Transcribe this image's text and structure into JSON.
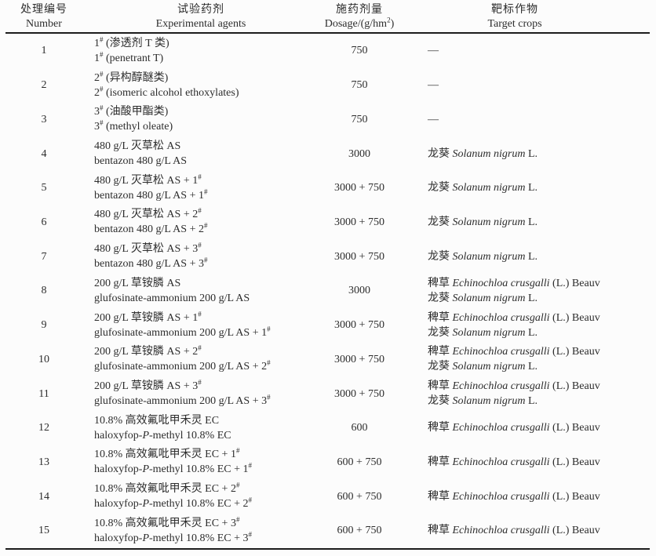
{
  "page": {
    "background": "#fcfcfc",
    "text_color": "#2d2d2d",
    "rule_color": "#1c1c1c"
  },
  "table": {
    "header": {
      "number_cn": "处理编号",
      "number_en": "Number",
      "agents_cn": "试验药剂",
      "agents_en": "Experimental agents",
      "dosage_cn": "施药剂量",
      "dosage_en_segments": [
        {
          "text": "Dosage/(g/hm"
        },
        {
          "text": "2",
          "sup": true
        },
        {
          "text": ")"
        }
      ],
      "target_cn": "靶标作物",
      "target_en": "Target crops"
    },
    "rows": [
      {
        "number": "1",
        "agent": [
          [
            {
              "text": "1"
            },
            {
              "text": "#",
              "sup": true
            },
            {
              "text": " (渗透剂 T 类)"
            }
          ],
          [
            {
              "text": "1"
            },
            {
              "text": "#",
              "sup": true
            },
            {
              "text": " (penetrant T)"
            }
          ]
        ],
        "dosage": "750",
        "targets": [
          [
            {
              "text": "—"
            }
          ]
        ]
      },
      {
        "number": "2",
        "agent": [
          [
            {
              "text": "2"
            },
            {
              "text": "#",
              "sup": true
            },
            {
              "text": " (异构醇醚类)"
            }
          ],
          [
            {
              "text": "2"
            },
            {
              "text": "#",
              "sup": true
            },
            {
              "text": " (isomeric alcohol ethoxylates)"
            }
          ]
        ],
        "dosage": "750",
        "targets": [
          [
            {
              "text": "—"
            }
          ]
        ]
      },
      {
        "number": "3",
        "agent": [
          [
            {
              "text": "3"
            },
            {
              "text": "#",
              "sup": true
            },
            {
              "text": " (油酸甲酯类)"
            }
          ],
          [
            {
              "text": "3"
            },
            {
              "text": "#",
              "sup": true
            },
            {
              "text": " (methyl oleate)"
            }
          ]
        ],
        "dosage": "750",
        "targets": [
          [
            {
              "text": "—"
            }
          ]
        ]
      },
      {
        "number": "4",
        "agent": [
          [
            {
              "text": "480 g/L 灭草松 AS"
            }
          ],
          [
            {
              "text": "bentazon 480 g/L AS"
            }
          ]
        ],
        "dosage": "3000",
        "targets": [
          [
            {
              "text": "龙葵 "
            },
            {
              "text": "Solanum nigrum",
              "italic": true
            },
            {
              "text": " L."
            }
          ]
        ]
      },
      {
        "number": "5",
        "agent": [
          [
            {
              "text": "480 g/L 灭草松 AS + 1"
            },
            {
              "text": "#",
              "sup": true
            }
          ],
          [
            {
              "text": "bentazon 480 g/L AS + 1"
            },
            {
              "text": "#",
              "sup": true
            }
          ]
        ],
        "dosage": "3000 + 750",
        "targets": [
          [
            {
              "text": "龙葵 "
            },
            {
              "text": "Solanum nigrum",
              "italic": true
            },
            {
              "text": " L."
            }
          ]
        ]
      },
      {
        "number": "6",
        "agent": [
          [
            {
              "text": "480 g/L 灭草松 AS + 2"
            },
            {
              "text": "#",
              "sup": true
            }
          ],
          [
            {
              "text": "bentazon 480 g/L AS + 2"
            },
            {
              "text": "#",
              "sup": true
            }
          ]
        ],
        "dosage": "3000 + 750",
        "targets": [
          [
            {
              "text": "龙葵 "
            },
            {
              "text": "Solanum nigrum",
              "italic": true
            },
            {
              "text": " L."
            }
          ]
        ]
      },
      {
        "number": "7",
        "agent": [
          [
            {
              "text": "480 g/L 灭草松 AS + 3"
            },
            {
              "text": "#",
              "sup": true
            }
          ],
          [
            {
              "text": "bentazon 480 g/L AS + 3"
            },
            {
              "text": "#",
              "sup": true
            }
          ]
        ],
        "dosage": "3000 + 750",
        "targets": [
          [
            {
              "text": "龙葵 "
            },
            {
              "text": "Solanum nigrum",
              "italic": true
            },
            {
              "text": " L."
            }
          ]
        ]
      },
      {
        "number": "8",
        "agent": [
          [
            {
              "text": "200 g/L 草铵膦 AS"
            }
          ],
          [
            {
              "text": "glufosinate-ammonium 200 g/L AS"
            }
          ]
        ],
        "dosage": "3000",
        "targets": [
          [
            {
              "text": "稗草 "
            },
            {
              "text": "Echinochloa crusgalli",
              "italic": true
            },
            {
              "text": " (L.) Beauv"
            }
          ],
          [
            {
              "text": "龙葵 "
            },
            {
              "text": "Solanum nigrum",
              "italic": true
            },
            {
              "text": " L."
            }
          ]
        ]
      },
      {
        "number": "9",
        "agent": [
          [
            {
              "text": "200 g/L 草铵膦 AS + 1"
            },
            {
              "text": "#",
              "sup": true
            }
          ],
          [
            {
              "text": "glufosinate-ammonium 200 g/L AS + 1"
            },
            {
              "text": "#",
              "sup": true
            }
          ]
        ],
        "dosage": "3000 + 750",
        "targets": [
          [
            {
              "text": "稗草 "
            },
            {
              "text": "Echinochloa crusgalli",
              "italic": true
            },
            {
              "text": " (L.) Beauv"
            }
          ],
          [
            {
              "text": "龙葵 "
            },
            {
              "text": "Solanum nigrum",
              "italic": true
            },
            {
              "text": " L."
            }
          ]
        ]
      },
      {
        "number": "10",
        "agent": [
          [
            {
              "text": "200 g/L 草铵膦 AS + 2"
            },
            {
              "text": "#",
              "sup": true
            }
          ],
          [
            {
              "text": "glufosinate-ammonium 200 g/L AS + 2"
            },
            {
              "text": "#",
              "sup": true
            }
          ]
        ],
        "dosage": "3000 + 750",
        "targets": [
          [
            {
              "text": "稗草 "
            },
            {
              "text": "Echinochloa crusgalli",
              "italic": true
            },
            {
              "text": " (L.) Beauv"
            }
          ],
          [
            {
              "text": "龙葵 "
            },
            {
              "text": "Solanum nigrum",
              "italic": true
            },
            {
              "text": " L."
            }
          ]
        ]
      },
      {
        "number": "11",
        "agent": [
          [
            {
              "text": "200 g/L 草铵膦 AS + 3"
            },
            {
              "text": "#",
              "sup": true
            }
          ],
          [
            {
              "text": "glufosinate-ammonium 200 g/L AS + 3"
            },
            {
              "text": "#",
              "sup": true
            }
          ]
        ],
        "dosage": "3000 + 750",
        "targets": [
          [
            {
              "text": "稗草 "
            },
            {
              "text": "Echinochloa crusgalli",
              "italic": true
            },
            {
              "text": " (L.) Beauv"
            }
          ],
          [
            {
              "text": "龙葵 "
            },
            {
              "text": "Solanum nigrum",
              "italic": true
            },
            {
              "text": " L."
            }
          ]
        ]
      },
      {
        "number": "12",
        "agent": [
          [
            {
              "text": "10.8% 高效氟吡甲禾灵 EC"
            }
          ],
          [
            {
              "text": "haloxyfop-"
            },
            {
              "text": "P",
              "italic": true
            },
            {
              "text": "-methyl 10.8% EC"
            }
          ]
        ],
        "dosage": "600",
        "targets": [
          [
            {
              "text": "稗草 "
            },
            {
              "text": "Echinochloa crusgalli",
              "italic": true
            },
            {
              "text": " (L.) Beauv"
            }
          ]
        ]
      },
      {
        "number": "13",
        "agent": [
          [
            {
              "text": "10.8% 高效氟吡甲禾灵 EC + 1"
            },
            {
              "text": "#",
              "sup": true
            }
          ],
          [
            {
              "text": "haloxyfop-"
            },
            {
              "text": "P",
              "italic": true
            },
            {
              "text": "-methyl 10.8% EC + 1"
            },
            {
              "text": "#",
              "sup": true
            }
          ]
        ],
        "dosage": "600 + 750",
        "targets": [
          [
            {
              "text": "稗草 "
            },
            {
              "text": "Echinochloa crusgalli",
              "italic": true
            },
            {
              "text": " (L.) Beauv"
            }
          ]
        ]
      },
      {
        "number": "14",
        "agent": [
          [
            {
              "text": "10.8% 高效氟吡甲禾灵 EC + 2"
            },
            {
              "text": "#",
              "sup": true
            }
          ],
          [
            {
              "text": "haloxyfop-"
            },
            {
              "text": "P",
              "italic": true
            },
            {
              "text": "-methyl 10.8% EC + 2"
            },
            {
              "text": "#",
              "sup": true
            }
          ]
        ],
        "dosage": "600 + 750",
        "targets": [
          [
            {
              "text": "稗草 "
            },
            {
              "text": "Echinochloa crusgalli",
              "italic": true
            },
            {
              "text": " (L.) Beauv"
            }
          ]
        ]
      },
      {
        "number": "15",
        "agent": [
          [
            {
              "text": "10.8% 高效氟吡甲禾灵 EC + 3"
            },
            {
              "text": "#",
              "sup": true
            }
          ],
          [
            {
              "text": "haloxyfop-"
            },
            {
              "text": "P",
              "italic": true
            },
            {
              "text": "-methyl 10.8% EC + 3"
            },
            {
              "text": "#",
              "sup": true
            }
          ]
        ],
        "dosage": "600 + 750",
        "targets": [
          [
            {
              "text": "稗草 "
            },
            {
              "text": "Echinochloa crusgalli",
              "italic": true
            },
            {
              "text": " (L.) Beauv"
            }
          ]
        ]
      }
    ]
  }
}
